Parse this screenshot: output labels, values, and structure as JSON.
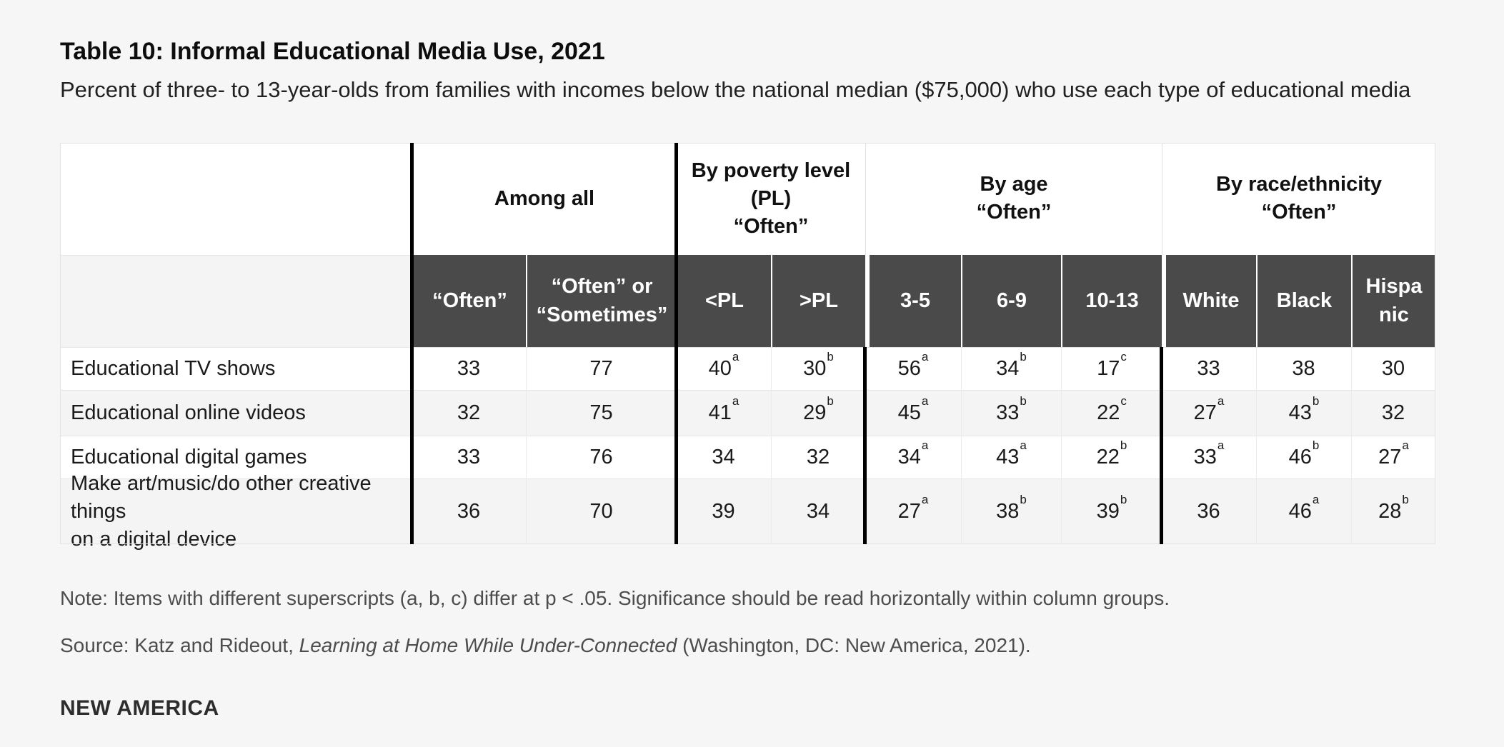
{
  "page": {
    "title": "Table 10: Informal Educational Media Use, 2021",
    "subtitle": "Percent of three- to 13-year-olds from families with incomes below the national median ($75,000) who use each type of educational media",
    "note": "Note: Items with different superscripts (a, b, c) differ at p < .05. Significance should be read horizontally within column groups.",
    "source_prefix": "Source: Katz and Rideout, ",
    "source_title": "Learning at Home While Under-Connected",
    "source_suffix": " (Washington, DC: New America, 2021).",
    "logo": "NEW AMERICA"
  },
  "colors": {
    "page_background": "#f6f6f6",
    "header_dark": "#4a4a4a",
    "row_alt": "#f4f4f4",
    "group_separator": "#000000",
    "grid_line": "#e6e6e6"
  },
  "table": {
    "groups": [
      {
        "label": "Among all",
        "span": 2
      },
      {
        "label": "By poverty level\n(PL)\n“Often”",
        "span": 2
      },
      {
        "label": "By age\n“Often”",
        "span": 3
      },
      {
        "label": "By race/ethnicity\n“Often”",
        "span": 3
      }
    ],
    "columns": [
      "“Often”",
      "“Often” or\n“Sometimes”",
      "<PL",
      ">PL",
      "3-5",
      "6-9",
      "10-13",
      "White",
      "Black",
      "Hispa\nnic"
    ],
    "rows": [
      {
        "label": "Educational TV shows",
        "values": [
          {
            "v": "33"
          },
          {
            "v": "77"
          },
          {
            "v": "40",
            "sup": "a"
          },
          {
            "v": "30",
            "sup": "b"
          },
          {
            "v": "56",
            "sup": "a"
          },
          {
            "v": "34",
            "sup": "b"
          },
          {
            "v": "17",
            "sup": "c"
          },
          {
            "v": "33"
          },
          {
            "v": "38"
          },
          {
            "v": "30"
          }
        ]
      },
      {
        "label": "Educational online videos",
        "values": [
          {
            "v": "32"
          },
          {
            "v": "75"
          },
          {
            "v": "41",
            "sup": "a"
          },
          {
            "v": "29",
            "sup": "b"
          },
          {
            "v": "45",
            "sup": "a"
          },
          {
            "v": "33",
            "sup": "b"
          },
          {
            "v": "22",
            "sup": "c"
          },
          {
            "v": "27",
            "sup": "a"
          },
          {
            "v": "43",
            "sup": "b"
          },
          {
            "v": "32"
          }
        ]
      },
      {
        "label": "Educational digital games",
        "values": [
          {
            "v": "33"
          },
          {
            "v": "76"
          },
          {
            "v": "34"
          },
          {
            "v": "32"
          },
          {
            "v": "34",
            "sup": "a"
          },
          {
            "v": "43",
            "sup": "a"
          },
          {
            "v": "22",
            "sup": "b"
          },
          {
            "v": "33",
            "sup": "a"
          },
          {
            "v": "46",
            "sup": "b"
          },
          {
            "v": "27",
            "sup": "a"
          }
        ]
      },
      {
        "label": "Make art/music/do other creative things\non a digital device",
        "values": [
          {
            "v": "36"
          },
          {
            "v": "70"
          },
          {
            "v": "39"
          },
          {
            "v": "34"
          },
          {
            "v": "27",
            "sup": "a"
          },
          {
            "v": "38",
            "sup": "b"
          },
          {
            "v": "39",
            "sup": "b"
          },
          {
            "v": "36"
          },
          {
            "v": "46",
            "sup": "a"
          },
          {
            "v": "28",
            "sup": "b"
          }
        ]
      }
    ]
  }
}
